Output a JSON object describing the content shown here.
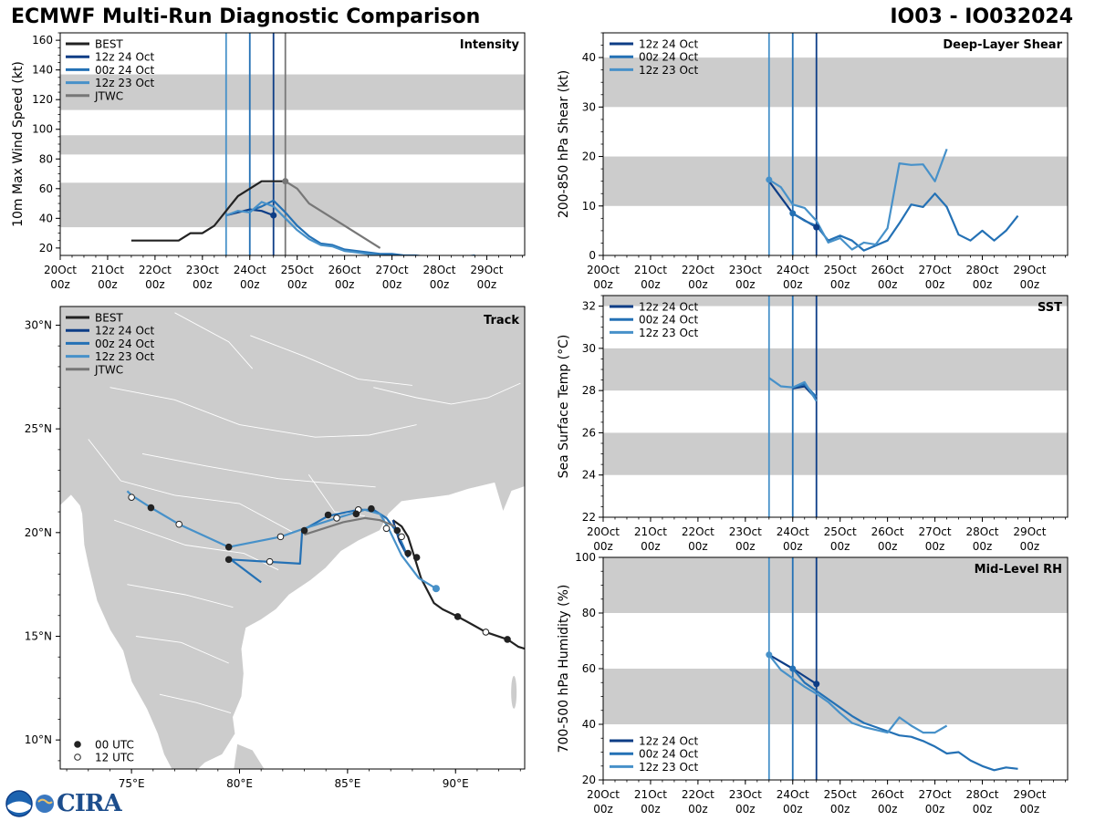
{
  "header": {
    "title": "ECMWF Multi-Run Diagnostic Comparison",
    "storm_id": "IO03 - IO032024"
  },
  "colors": {
    "best": "#222222",
    "run_12z24": "#0d3d86",
    "run_00z24": "#2471b5",
    "run_12z23": "#4791c9",
    "jtwc": "#777777",
    "band": "#cccccc",
    "land": "#cccccc"
  },
  "time_axis": {
    "labels": [
      "20Oct",
      "21Oct",
      "22Oct",
      "23Oct",
      "24Oct",
      "25Oct",
      "26Oct",
      "27Oct",
      "28Oct",
      "29Oct"
    ],
    "sublabel": "00z"
  },
  "logo": {
    "text": "CIRA",
    "icon": "noaa-logo-icon"
  },
  "chart_data": [
    {
      "id": "intensity",
      "type": "line",
      "title": "Intensity",
      "ylabel": "10m Max Wind Speed (kt)",
      "xlabel": "",
      "xlim": [
        0,
        9.8
      ],
      "ylim": [
        15,
        165
      ],
      "yticks": [
        20,
        40,
        60,
        80,
        100,
        120,
        140,
        160
      ],
      "bands": [
        [
          34,
          64
        ],
        [
          83,
          96
        ],
        [
          113,
          137
        ]
      ],
      "init_lines": [
        {
          "x": 3.5,
          "series": "12z 23 Oct"
        },
        {
          "x": 4.0,
          "series": "00z 24 Oct"
        },
        {
          "x": 4.5,
          "series": "12z 24 Oct"
        },
        {
          "x": 4.75,
          "series": "JTWC"
        }
      ],
      "legend": [
        "BEST",
        "12z 24 Oct",
        "00z 24 Oct",
        "12z 23 Oct",
        "JTWC"
      ],
      "series": [
        {
          "name": "BEST",
          "x": [
            1.5,
            2.5,
            2.75,
            3.0,
            3.25,
            3.5,
            3.75,
            4.0,
            4.25,
            4.5,
            4.75
          ],
          "y": [
            25,
            25,
            30,
            30,
            35,
            45,
            55,
            60,
            65,
            65,
            65
          ]
        },
        {
          "name": "12z 24 Oct",
          "x": [
            3.5,
            3.75,
            4.0,
            4.25,
            4.5
          ],
          "y": [
            42,
            44,
            46,
            45,
            42
          ]
        },
        {
          "name": "00z 24 Oct",
          "x": [
            4.0,
            4.25,
            4.5,
            4.75,
            5.0,
            5.25,
            5.5,
            5.75,
            6.0,
            6.25,
            6.5,
            6.75,
            7.0,
            7.25,
            7.5,
            7.75,
            8.0,
            8.25,
            8.5,
            8.75
          ],
          "y": [
            45,
            48,
            52,
            44,
            35,
            28,
            23,
            22,
            19,
            18,
            17,
            16,
            16,
            15,
            15,
            14,
            14,
            14,
            14,
            15
          ]
        },
        {
          "name": "12z 23 Oct",
          "x": [
            3.5,
            3.75,
            4.0,
            4.25,
            4.5,
            4.75,
            5.0,
            5.25,
            5.5,
            5.75,
            6.0,
            6.25,
            6.5,
            6.75,
            7.0
          ],
          "y": [
            42,
            45,
            44,
            51,
            48,
            40,
            32,
            26,
            22,
            21,
            18,
            17,
            16,
            15,
            14
          ]
        },
        {
          "name": "JTWC",
          "x": [
            4.75,
            5.0,
            5.25,
            6.75
          ],
          "y": [
            65,
            60,
            50,
            20
          ]
        }
      ],
      "markers": [
        {
          "series": "12z 24 Oct",
          "x": 4.5,
          "y": 42
        },
        {
          "series": "JTWC",
          "x": 4.75,
          "y": 65
        }
      ]
    },
    {
      "id": "shear",
      "type": "line",
      "title": "Deep-Layer Shear",
      "ylabel": "200-850 hPa Shear (kt)",
      "xlabel": "",
      "xlim": [
        0,
        9.8
      ],
      "ylim": [
        0,
        45
      ],
      "yticks": [
        0,
        10,
        20,
        30,
        40
      ],
      "bands": [
        [
          10,
          20
        ],
        [
          30,
          40
        ]
      ],
      "init_lines": [
        {
          "x": 3.5,
          "series": "12z 23 Oct"
        },
        {
          "x": 4.0,
          "series": "00z 24 Oct"
        },
        {
          "x": 4.5,
          "series": "12z 24 Oct"
        }
      ],
      "legend": [
        "12z 24 Oct",
        "00z 24 Oct",
        "12z 23 Oct"
      ],
      "series": [
        {
          "name": "12z 24 Oct",
          "x": [
            3.5,
            4.0,
            4.5
          ],
          "y": [
            15,
            8.5,
            5.7
          ]
        },
        {
          "name": "00z 24 Oct",
          "x": [
            4.0,
            4.25,
            4.5,
            4.75,
            5.0,
            5.25,
            5.5,
            5.75,
            6.0,
            6.25,
            6.5,
            6.75,
            7.0,
            7.25,
            7.5,
            7.75,
            8.0,
            8.25,
            8.5,
            8.75
          ],
          "y": [
            8.5,
            7,
            6,
            3,
            4,
            3,
            1,
            2,
            3,
            6.5,
            10.3,
            9.8,
            12.5,
            9.8,
            4.2,
            3,
            5,
            3,
            5,
            8
          ]
        },
        {
          "name": "12z 23 Oct",
          "x": [
            3.5,
            3.75,
            4.0,
            4.25,
            4.5,
            4.75,
            5.0,
            5.25,
            5.5,
            5.75,
            6.0,
            6.25,
            6.5,
            6.75,
            7.0,
            7.25
          ],
          "y": [
            15.3,
            13.8,
            10.3,
            9.6,
            7,
            2.6,
            3.5,
            1.2,
            2.6,
            2.2,
            5.5,
            18.6,
            18.3,
            18.4,
            15,
            21.5
          ]
        }
      ],
      "markers": [
        {
          "series": "12z 24 Oct",
          "x": 4.5,
          "y": 5.7
        },
        {
          "series": "00z 24 Oct",
          "x": 4.0,
          "y": 8.5
        },
        {
          "series": "12z 23 Oct",
          "x": 3.5,
          "y": 15.3
        }
      ]
    },
    {
      "id": "track",
      "type": "scatter",
      "title": "Track",
      "xlabel": "",
      "ylabel": "",
      "xlim": [
        71.7,
        93.2
      ],
      "ylim": [
        8.6,
        30.9
      ],
      "xticks": [
        {
          "v": 75,
          "label": "75°E"
        },
        {
          "v": 80,
          "label": "80°E"
        },
        {
          "v": 85,
          "label": "85°E"
        },
        {
          "v": 90,
          "label": "90°E"
        }
      ],
      "yticks": [
        {
          "v": 10,
          "label": "10°N"
        },
        {
          "v": 15,
          "label": "15°N"
        },
        {
          "v": 20,
          "label": "20°N"
        },
        {
          "v": 25,
          "label": "25°N"
        },
        {
          "v": 30,
          "label": "30°N"
        }
      ],
      "legend": [
        "BEST",
        "12z 24 Oct",
        "00z 24 Oct",
        "12z 23 Oct",
        "JTWC"
      ],
      "marker_legend": [
        "00 UTC",
        "12 UTC"
      ],
      "series": [
        {
          "name": "BEST",
          "lon": [
            93.2,
            92.9,
            92.4,
            91.4,
            90.8,
            90.1,
            89.4,
            89.0,
            88.4,
            88.1,
            87.8,
            87.5,
            87.1
          ],
          "lat": [
            14.4,
            14.5,
            14.85,
            15.2,
            15.55,
            15.95,
            16.3,
            16.6,
            17.8,
            18.8,
            19.8,
            20.3,
            20.6
          ]
        },
        {
          "name": "12z 24 Oct",
          "lon": [
            87.1,
            87.4,
            87.8
          ],
          "lat": [
            20.6,
            19.6,
            18.8
          ]
        },
        {
          "name": "00z 24 Oct",
          "lon": [
            81.0,
            79.6,
            82.8,
            82.9,
            84.1,
            85.5,
            86.2,
            86.8,
            87.3,
            87.6,
            87.8
          ],
          "lat": [
            17.6,
            18.7,
            18.5,
            20.1,
            20.8,
            21.1,
            21.1,
            20.7,
            20.0,
            19.3,
            18.8
          ]
        },
        {
          "name": "12z 23 Oct",
          "lon": [
            74.8,
            75.0,
            75.9,
            77.2,
            79.5,
            81.9,
            83.0,
            84.5,
            85.8,
            86.5,
            86.9,
            87.5,
            88.3,
            89.1
          ],
          "lat": [
            22.0,
            21.8,
            21.2,
            20.4,
            19.3,
            19.8,
            20.2,
            20.7,
            21.1,
            20.9,
            20.2,
            18.9,
            17.8,
            17.3
          ]
        },
        {
          "name": "JTWC",
          "lon": [
            83.0,
            84.8,
            85.8,
            86.5,
            87.2
          ],
          "lat": [
            19.9,
            20.5,
            20.7,
            20.6,
            20.3
          ]
        }
      ],
      "points": [
        {
          "lon": 92.4,
          "lat": 14.85,
          "utc": "00"
        },
        {
          "lon": 91.4,
          "lat": 15.2,
          "utc": "12"
        },
        {
          "lon": 90.1,
          "lat": 15.95,
          "utc": "00"
        },
        {
          "lon": 88.2,
          "lat": 18.8,
          "utc": "00"
        },
        {
          "lon": 87.8,
          "lat": 19.0,
          "utc": "00"
        },
        {
          "lon": 87.5,
          "lat": 19.8,
          "utc": "12"
        },
        {
          "lon": 87.3,
          "lat": 20.1,
          "utc": "00"
        },
        {
          "lon": 86.8,
          "lat": 20.2,
          "utc": "12"
        },
        {
          "lon": 86.1,
          "lat": 21.15,
          "utc": "00"
        },
        {
          "lon": 85.5,
          "lat": 21.1,
          "utc": "12"
        },
        {
          "lon": 85.4,
          "lat": 20.9,
          "utc": "00"
        },
        {
          "lon": 84.5,
          "lat": 20.7,
          "utc": "12"
        },
        {
          "lon": 84.1,
          "lat": 20.85,
          "utc": "00"
        },
        {
          "lon": 83.0,
          "lat": 20.1,
          "utc": "00"
        },
        {
          "lon": 81.9,
          "lat": 19.8,
          "utc": "12"
        },
        {
          "lon": 81.4,
          "lat": 18.6,
          "utc": "12"
        },
        {
          "lon": 79.5,
          "lat": 19.3,
          "utc": "00"
        },
        {
          "lon": 79.5,
          "lat": 18.7,
          "utc": "00"
        },
        {
          "lon": 77.2,
          "lat": 20.4,
          "utc": "12"
        },
        {
          "lon": 75.9,
          "lat": 21.2,
          "utc": "00"
        },
        {
          "lon": 75.0,
          "lat": 21.7,
          "utc": "12"
        },
        {
          "lon": 89.1,
          "lat": 17.3,
          "utc": "00"
        }
      ]
    },
    {
      "id": "sst",
      "type": "line",
      "title": "SST",
      "ylabel": "Sea Surface Temp (°C)",
      "xlabel": "",
      "xlim": [
        0,
        9.8
      ],
      "ylim": [
        22,
        32.5
      ],
      "yticks": [
        22,
        24,
        26,
        28,
        30,
        32
      ],
      "bands": [
        [
          24,
          26
        ],
        [
          28,
          30
        ],
        [
          32,
          32.5
        ]
      ],
      "init_lines": [
        {
          "x": 3.5,
          "series": "12z 23 Oct"
        },
        {
          "x": 4.0,
          "series": "00z 24 Oct"
        },
        {
          "x": 4.5,
          "series": "12z 24 Oct"
        }
      ],
      "legend": [
        "12z 24 Oct",
        "00z 24 Oct",
        "12z 23 Oct"
      ],
      "series": [
        {
          "name": "12z 24 Oct",
          "x": [
            4.0,
            4.25,
            4.5
          ],
          "y": [
            28.1,
            28.2,
            27.6
          ]
        },
        {
          "name": "00z 24 Oct",
          "x": [
            4.0,
            4.25,
            4.5
          ],
          "y": [
            28.15,
            28.3,
            27.7
          ]
        },
        {
          "name": "12z 23 Oct",
          "x": [
            3.5,
            3.75,
            4.0,
            4.25,
            4.5
          ],
          "y": [
            28.6,
            28.2,
            28.15,
            28.4,
            27.5
          ]
        }
      ],
      "markers": []
    },
    {
      "id": "rh",
      "type": "line",
      "title": "Mid-Level RH",
      "ylabel": "700-500 hPa Humidity (%)",
      "xlabel": "",
      "xlim": [
        0,
        9.8
      ],
      "ylim": [
        20,
        100
      ],
      "yticks": [
        20,
        40,
        60,
        80,
        100
      ],
      "bands": [
        [
          40,
          60
        ],
        [
          80,
          100
        ]
      ],
      "init_lines": [
        {
          "x": 3.5,
          "series": "12z 23 Oct"
        },
        {
          "x": 4.0,
          "series": "00z 24 Oct"
        },
        {
          "x": 4.5,
          "series": "12z 24 Oct"
        }
      ],
      "legend": [
        "12z 24 Oct",
        "00z 24 Oct",
        "12z 23 Oct"
      ],
      "series": [
        {
          "name": "12z 24 Oct",
          "x": [
            3.5,
            4.0,
            4.5
          ],
          "y": [
            65,
            60,
            54.5
          ]
        },
        {
          "name": "00z 24 Oct",
          "x": [
            4.0,
            4.25,
            4.5,
            4.75,
            5.0,
            5.25,
            5.5,
            5.75,
            6.0,
            6.25,
            6.5,
            6.75,
            7.0,
            7.25,
            7.5,
            7.75,
            8.0,
            8.25,
            8.5,
            8.75
          ],
          "y": [
            60,
            55,
            52,
            49,
            46,
            43,
            40.5,
            39,
            37.5,
            36,
            35.5,
            34,
            32,
            29.5,
            30,
            27,
            25,
            23.5,
            24.5,
            24
          ]
        },
        {
          "name": "12z 23 Oct",
          "x": [
            3.5,
            3.75,
            4.0,
            4.25,
            4.5,
            4.75,
            5.0,
            5.25,
            5.5,
            5.75,
            6.0,
            6.25,
            6.5,
            6.75,
            7.0,
            7.25
          ],
          "y": [
            65,
            59.5,
            56.5,
            53.5,
            51,
            48,
            44,
            40.5,
            39,
            38,
            37,
            42.5,
            39.5,
            37,
            37,
            39.5
          ]
        }
      ],
      "markers": [
        {
          "series": "12z 24 Oct",
          "x": 4.5,
          "y": 54.5
        },
        {
          "series": "00z 24 Oct",
          "x": 4.0,
          "y": 60
        },
        {
          "series": "12z 23 Oct",
          "x": 3.5,
          "y": 65
        }
      ]
    }
  ]
}
